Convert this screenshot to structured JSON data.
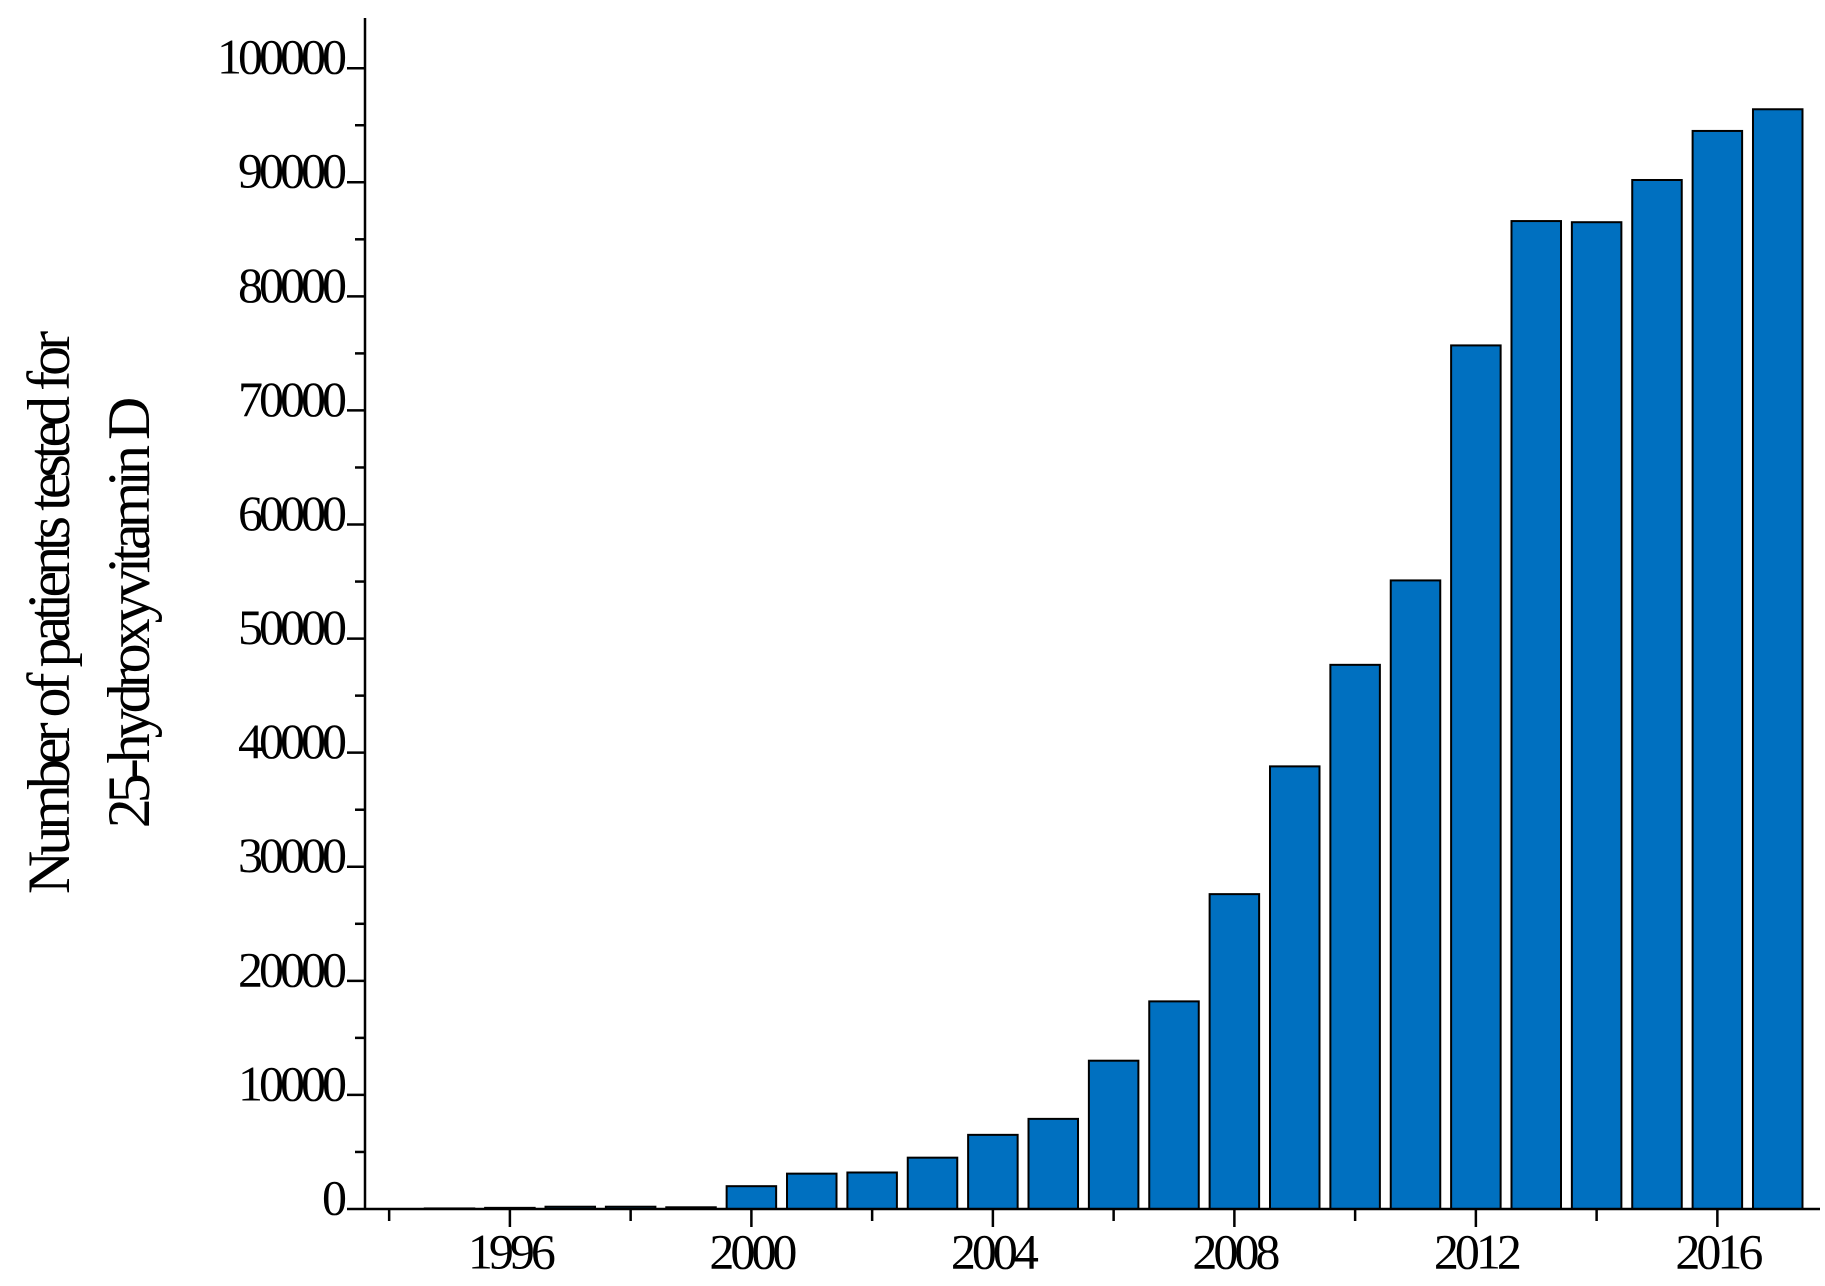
{
  "chart_data": {
    "type": "bar",
    "y_label": [
      "Number of patients tested for",
      "25-hydroxyvitamin D"
    ],
    "x": [
      1995,
      1996,
      1997,
      1998,
      1999,
      2000,
      2001,
      2002,
      2003,
      2004,
      2005,
      2006,
      2007,
      2008,
      2009,
      2010,
      2011,
      2012,
      2013,
      2014,
      2015,
      2016,
      2017
    ],
    "values": [
      50,
      100,
      200,
      200,
      150,
      2000,
      3100,
      3200,
      4500,
      6500,
      7900,
      13000,
      18200,
      27600,
      38800,
      47700,
      55100,
      75700,
      86600,
      86500,
      90200,
      94500,
      96400
    ],
    "color": "#0070c0",
    "xlim": [
      1993.6,
      2017.7
    ],
    "xticks": [
      1996,
      2000,
      2004,
      2008,
      2012,
      2016
    ],
    "xminorticks": [
      1994,
      1998,
      2002,
      2006,
      2010,
      2014
    ],
    "ylim": [
      0,
      104400
    ],
    "yticks": [
      0,
      10000,
      20000,
      30000,
      40000,
      50000,
      60000,
      70000,
      80000,
      90000,
      100000
    ],
    "yminorticks": [
      5000,
      15000,
      25000,
      35000,
      45000,
      55000,
      65000,
      75000,
      85000,
      95000
    ],
    "grid": false
  }
}
